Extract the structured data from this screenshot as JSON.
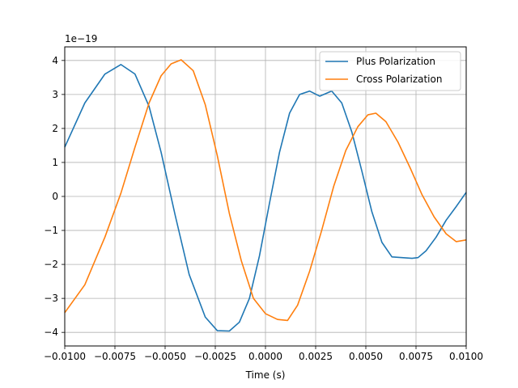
{
  "chart_data": {
    "type": "line",
    "xlabel": "Time (s)",
    "ylabel": "",
    "y_offset_label": "1e−19",
    "xlim": [
      -0.01,
      0.01
    ],
    "ylim": [
      -4.4,
      4.4
    ],
    "grid": true,
    "legend_placement": "top-right",
    "xticks": [
      -0.01,
      -0.0075,
      -0.005,
      -0.0025,
      0.0,
      0.0025,
      0.005,
      0.0075,
      0.01
    ],
    "xtick_labels": [
      "−0.0100",
      "−0.0075",
      "−0.0050",
      "−0.0025",
      "0.0000",
      "0.0025",
      "0.0050",
      "0.0075",
      "0.0100"
    ],
    "yticks": [
      -4,
      -3,
      -2,
      -1,
      0,
      1,
      2,
      3,
      4
    ],
    "ytick_labels": [
      "−4",
      "−3",
      "−2",
      "−1",
      "0",
      "1",
      "2",
      "3",
      "4"
    ],
    "series": [
      {
        "name": "Plus Polarization",
        "color": "#1f77b4",
        "x": [
          -0.01,
          -0.009,
          -0.008,
          -0.0072,
          -0.0065,
          -0.0058,
          -0.0052,
          -0.0045,
          -0.0038,
          -0.003,
          -0.0024,
          -0.0018,
          -0.0013,
          -0.0008,
          -0.0003,
          0.0002,
          0.0007,
          0.0012,
          0.0017,
          0.0022,
          0.0027,
          0.0033,
          0.0038,
          0.0043,
          0.0048,
          0.0053,
          0.0058,
          0.0063,
          0.0068,
          0.0073,
          0.0076,
          0.008,
          0.0085,
          0.009,
          0.0095,
          0.01
        ],
        "y": [
          1.45,
          2.75,
          3.6,
          3.88,
          3.6,
          2.65,
          1.3,
          -0.55,
          -2.3,
          -3.55,
          -3.95,
          -3.96,
          -3.7,
          -3.0,
          -1.75,
          -0.2,
          1.3,
          2.45,
          3.0,
          3.1,
          2.95,
          3.1,
          2.75,
          1.9,
          0.75,
          -0.45,
          -1.35,
          -1.78,
          -1.8,
          -1.82,
          -1.8,
          -1.6,
          -1.2,
          -0.7,
          -0.3,
          0.12
        ]
      },
      {
        "name": "Cross Polarization",
        "color": "#ff7f0e",
        "x": [
          -0.01,
          -0.009,
          -0.008,
          -0.0072,
          -0.0065,
          -0.0058,
          -0.0052,
          -0.0047,
          -0.0042,
          -0.0036,
          -0.003,
          -0.0024,
          -0.0018,
          -0.0012,
          -0.0006,
          0.0,
          0.0006,
          0.0011,
          0.0016,
          0.0022,
          0.0028,
          0.0034,
          0.004,
          0.0046,
          0.0051,
          0.0055,
          0.006,
          0.0066,
          0.0072,
          0.0078,
          0.0084,
          0.009,
          0.0095,
          0.01
        ],
        "y": [
          -3.42,
          -2.6,
          -1.2,
          0.1,
          1.45,
          2.75,
          3.55,
          3.9,
          4.02,
          3.7,
          2.7,
          1.2,
          -0.5,
          -1.9,
          -3.0,
          -3.45,
          -3.62,
          -3.65,
          -3.2,
          -2.2,
          -1.0,
          0.3,
          1.35,
          2.05,
          2.4,
          2.45,
          2.2,
          1.6,
          0.85,
          0.05,
          -0.6,
          -1.1,
          -1.33,
          -1.28
        ]
      }
    ]
  }
}
